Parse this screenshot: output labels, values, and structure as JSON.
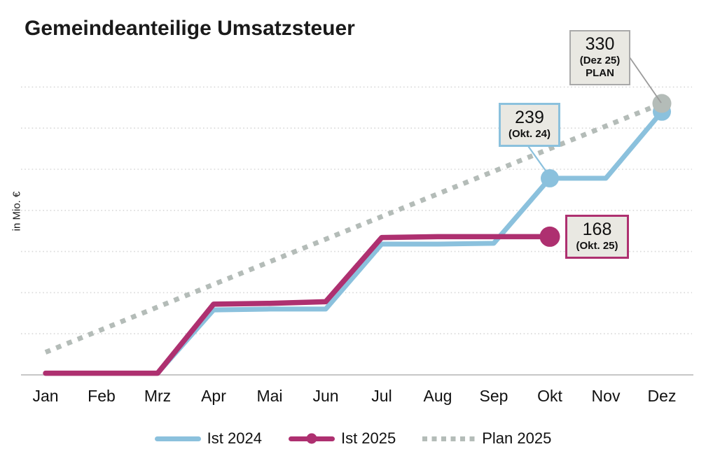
{
  "title": "Gemeindeanteilige Umsatzsteuer",
  "chart_data": {
    "type": "line",
    "title": "Gemeindeanteilige Umsatzsteuer",
    "ylabel": "in Mio. €",
    "xlabel": "",
    "categories": [
      "Jan",
      "Feb",
      "Mrz",
      "Apr",
      "Mai",
      "Jun",
      "Jul",
      "Aug",
      "Sep",
      "Okt",
      "Nov",
      "Dez"
    ],
    "ylim": [
      0,
      350
    ],
    "gridline_values": [
      50,
      100,
      150,
      200,
      250,
      300,
      350
    ],
    "grid": "horizontal-dotted",
    "legend_position": "bottom",
    "series": [
      {
        "name": "Ist 2024",
        "style": "solid",
        "color": "#8bc1dd",
        "values": [
          2,
          2,
          2,
          79,
          80,
          80,
          159,
          159,
          160,
          239,
          239,
          320
        ],
        "marker_points": [
          {
            "month": "Okt",
            "value": 239
          },
          {
            "month": "Dez",
            "value": 320
          }
        ]
      },
      {
        "name": "Ist 2025",
        "style": "solid",
        "color": "#ae3070",
        "values": [
          2,
          2,
          2,
          86,
          87,
          89,
          167,
          168,
          168,
          168
        ],
        "marker_points": [
          {
            "month": "Okt",
            "value": 168
          }
        ]
      },
      {
        "name": "Plan 2025",
        "style": "dotted",
        "color": "#b4bcb8",
        "values": [
          27.5,
          55,
          82.5,
          110,
          137.5,
          165,
          192.5,
          220,
          247.5,
          275,
          302.5,
          330
        ],
        "marker_points": [
          {
            "month": "Dez",
            "value": 330
          }
        ]
      }
    ],
    "annotations": {
      "plan": {
        "value": "330",
        "period": "(Dez 25)",
        "tag": "PLAN",
        "series": "Plan 2025"
      },
      "ist2024": {
        "value": "239",
        "period": "(Okt. 24)",
        "series": "Ist 2024"
      },
      "ist2025": {
        "value": "168",
        "period": "(Okt. 25)",
        "series": "Ist 2025"
      }
    },
    "colors": {
      "grid": "#d8d8d8",
      "axis": "#c7c7c7",
      "annotation_bg": "#e9e8e2",
      "annotation_border_gray": "#a9a9a9",
      "leader_gray": "#9b9b9b",
      "text": "#111111"
    }
  },
  "legend": {
    "items": [
      {
        "label": "Ist 2024"
      },
      {
        "label": "Ist 2025"
      },
      {
        "label": "Plan 2025"
      }
    ]
  }
}
